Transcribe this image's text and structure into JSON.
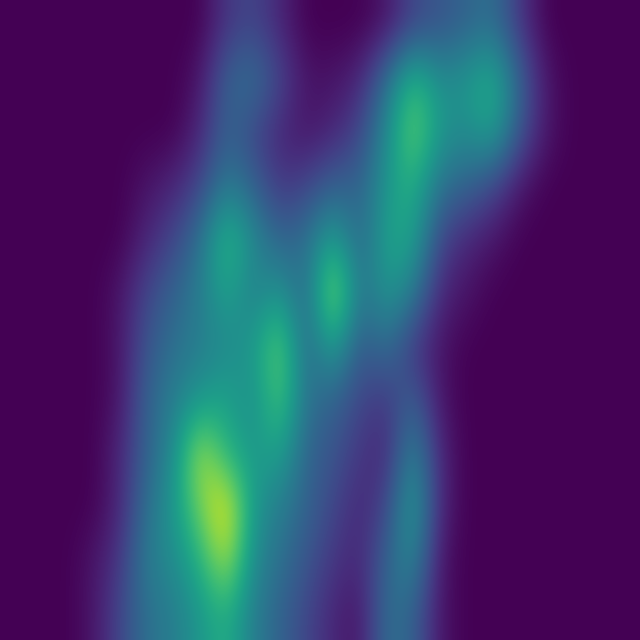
{
  "chart_data": {
    "type": "heatmap",
    "tick_labels": false,
    "cells": [
      [
        0,
        0,
        0,
        0,
        0,
        0,
        0,
        0,
        0.15,
        0.2,
        0.1,
        0,
        0,
        0,
        0.05,
        0.2,
        0.25,
        0.3,
        0.35,
        0.15,
        0,
        0,
        0,
        0
      ],
      [
        0,
        0,
        0,
        0,
        0,
        0,
        0,
        0.05,
        0.3,
        0.35,
        0.2,
        0.05,
        0.05,
        0.1,
        0.35,
        0.65,
        0.45,
        0.5,
        0.6,
        0.3,
        0.05,
        0,
        0,
        0
      ],
      [
        0,
        0,
        0,
        0,
        0,
        0,
        0,
        0.1,
        0.3,
        0.2,
        0.1,
        0.05,
        0.1,
        0.2,
        0.45,
        0.75,
        0.5,
        0.45,
        0.55,
        0.25,
        0.05,
        0,
        0,
        0
      ],
      [
        0,
        0,
        0,
        0,
        0,
        0.05,
        0.1,
        0.2,
        0.4,
        0.3,
        0.15,
        0.2,
        0.3,
        0.3,
        0.5,
        0.6,
        0.35,
        0.3,
        0.2,
        0.05,
        0,
        0,
        0,
        0
      ],
      [
        0,
        0,
        0,
        0,
        0,
        0.1,
        0.2,
        0.35,
        0.65,
        0.45,
        0.3,
        0.35,
        0.55,
        0.3,
        0.55,
        0.55,
        0.2,
        0.1,
        0.05,
        0,
        0,
        0,
        0,
        0
      ],
      [
        0,
        0,
        0,
        0,
        0.05,
        0.2,
        0.3,
        0.4,
        0.55,
        0.4,
        0.5,
        0.3,
        0.85,
        0.35,
        0.5,
        0.4,
        0.1,
        0.05,
        0,
        0,
        0,
        0,
        0,
        0
      ],
      [
        0,
        0,
        0,
        0,
        0.05,
        0.25,
        0.35,
        0.4,
        0.45,
        0.5,
        0.75,
        0.3,
        0.55,
        0.25,
        0.35,
        0.15,
        0.05,
        0,
        0,
        0,
        0,
        0,
        0,
        0
      ],
      [
        0,
        0,
        0,
        0,
        0.05,
        0.3,
        0.4,
        0.5,
        0.55,
        0.45,
        0.7,
        0.35,
        0.3,
        0.2,
        0.15,
        0.3,
        0.05,
        0,
        0,
        0,
        0,
        0,
        0,
        0
      ],
      [
        0,
        0,
        0,
        0,
        0.1,
        0.3,
        0.45,
        0.85,
        0.6,
        0.5,
        0.55,
        0.3,
        0.25,
        0.15,
        0.1,
        0.45,
        0.1,
        0,
        0,
        0,
        0,
        0,
        0,
        0
      ],
      [
        0,
        0,
        0,
        0,
        0.1,
        0.35,
        0.5,
        0.75,
        0.95,
        0.5,
        0.4,
        0.3,
        0.2,
        0.1,
        0.2,
        0.55,
        0.1,
        0,
        0,
        0,
        0,
        0,
        0,
        0
      ],
      [
        0,
        0,
        0,
        0.05,
        0.15,
        0.4,
        0.45,
        0.6,
        0.85,
        0.45,
        0.35,
        0.25,
        0.15,
        0.1,
        0.3,
        0.45,
        0.05,
        0,
        0,
        0,
        0,
        0,
        0,
        0
      ],
      [
        0,
        0,
        0,
        0.05,
        0.2,
        0.35,
        0.4,
        0.5,
        0.6,
        0.4,
        0.3,
        0.2,
        0.1,
        0.05,
        0.35,
        0.3,
        0.05,
        0,
        0,
        0,
        0,
        0,
        0,
        0
      ]
    ]
  }
}
